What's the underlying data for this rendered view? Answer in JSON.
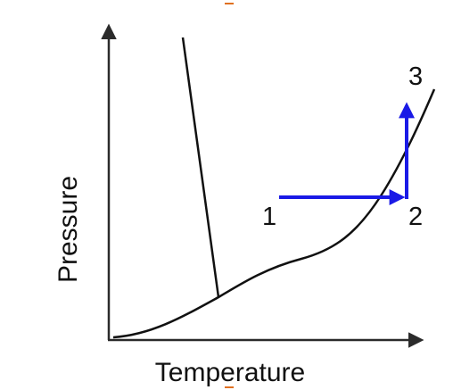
{
  "diagram": {
    "x_axis_label": "Temperature",
    "y_axis_label": "Pressure",
    "points": {
      "p1": "1",
      "p2": "2",
      "p3": "3"
    },
    "colors": {
      "curve": "#111111",
      "axis": "#2b2b2b",
      "path_arrow": "#1a1ae6",
      "marker": "#e07020"
    }
  }
}
